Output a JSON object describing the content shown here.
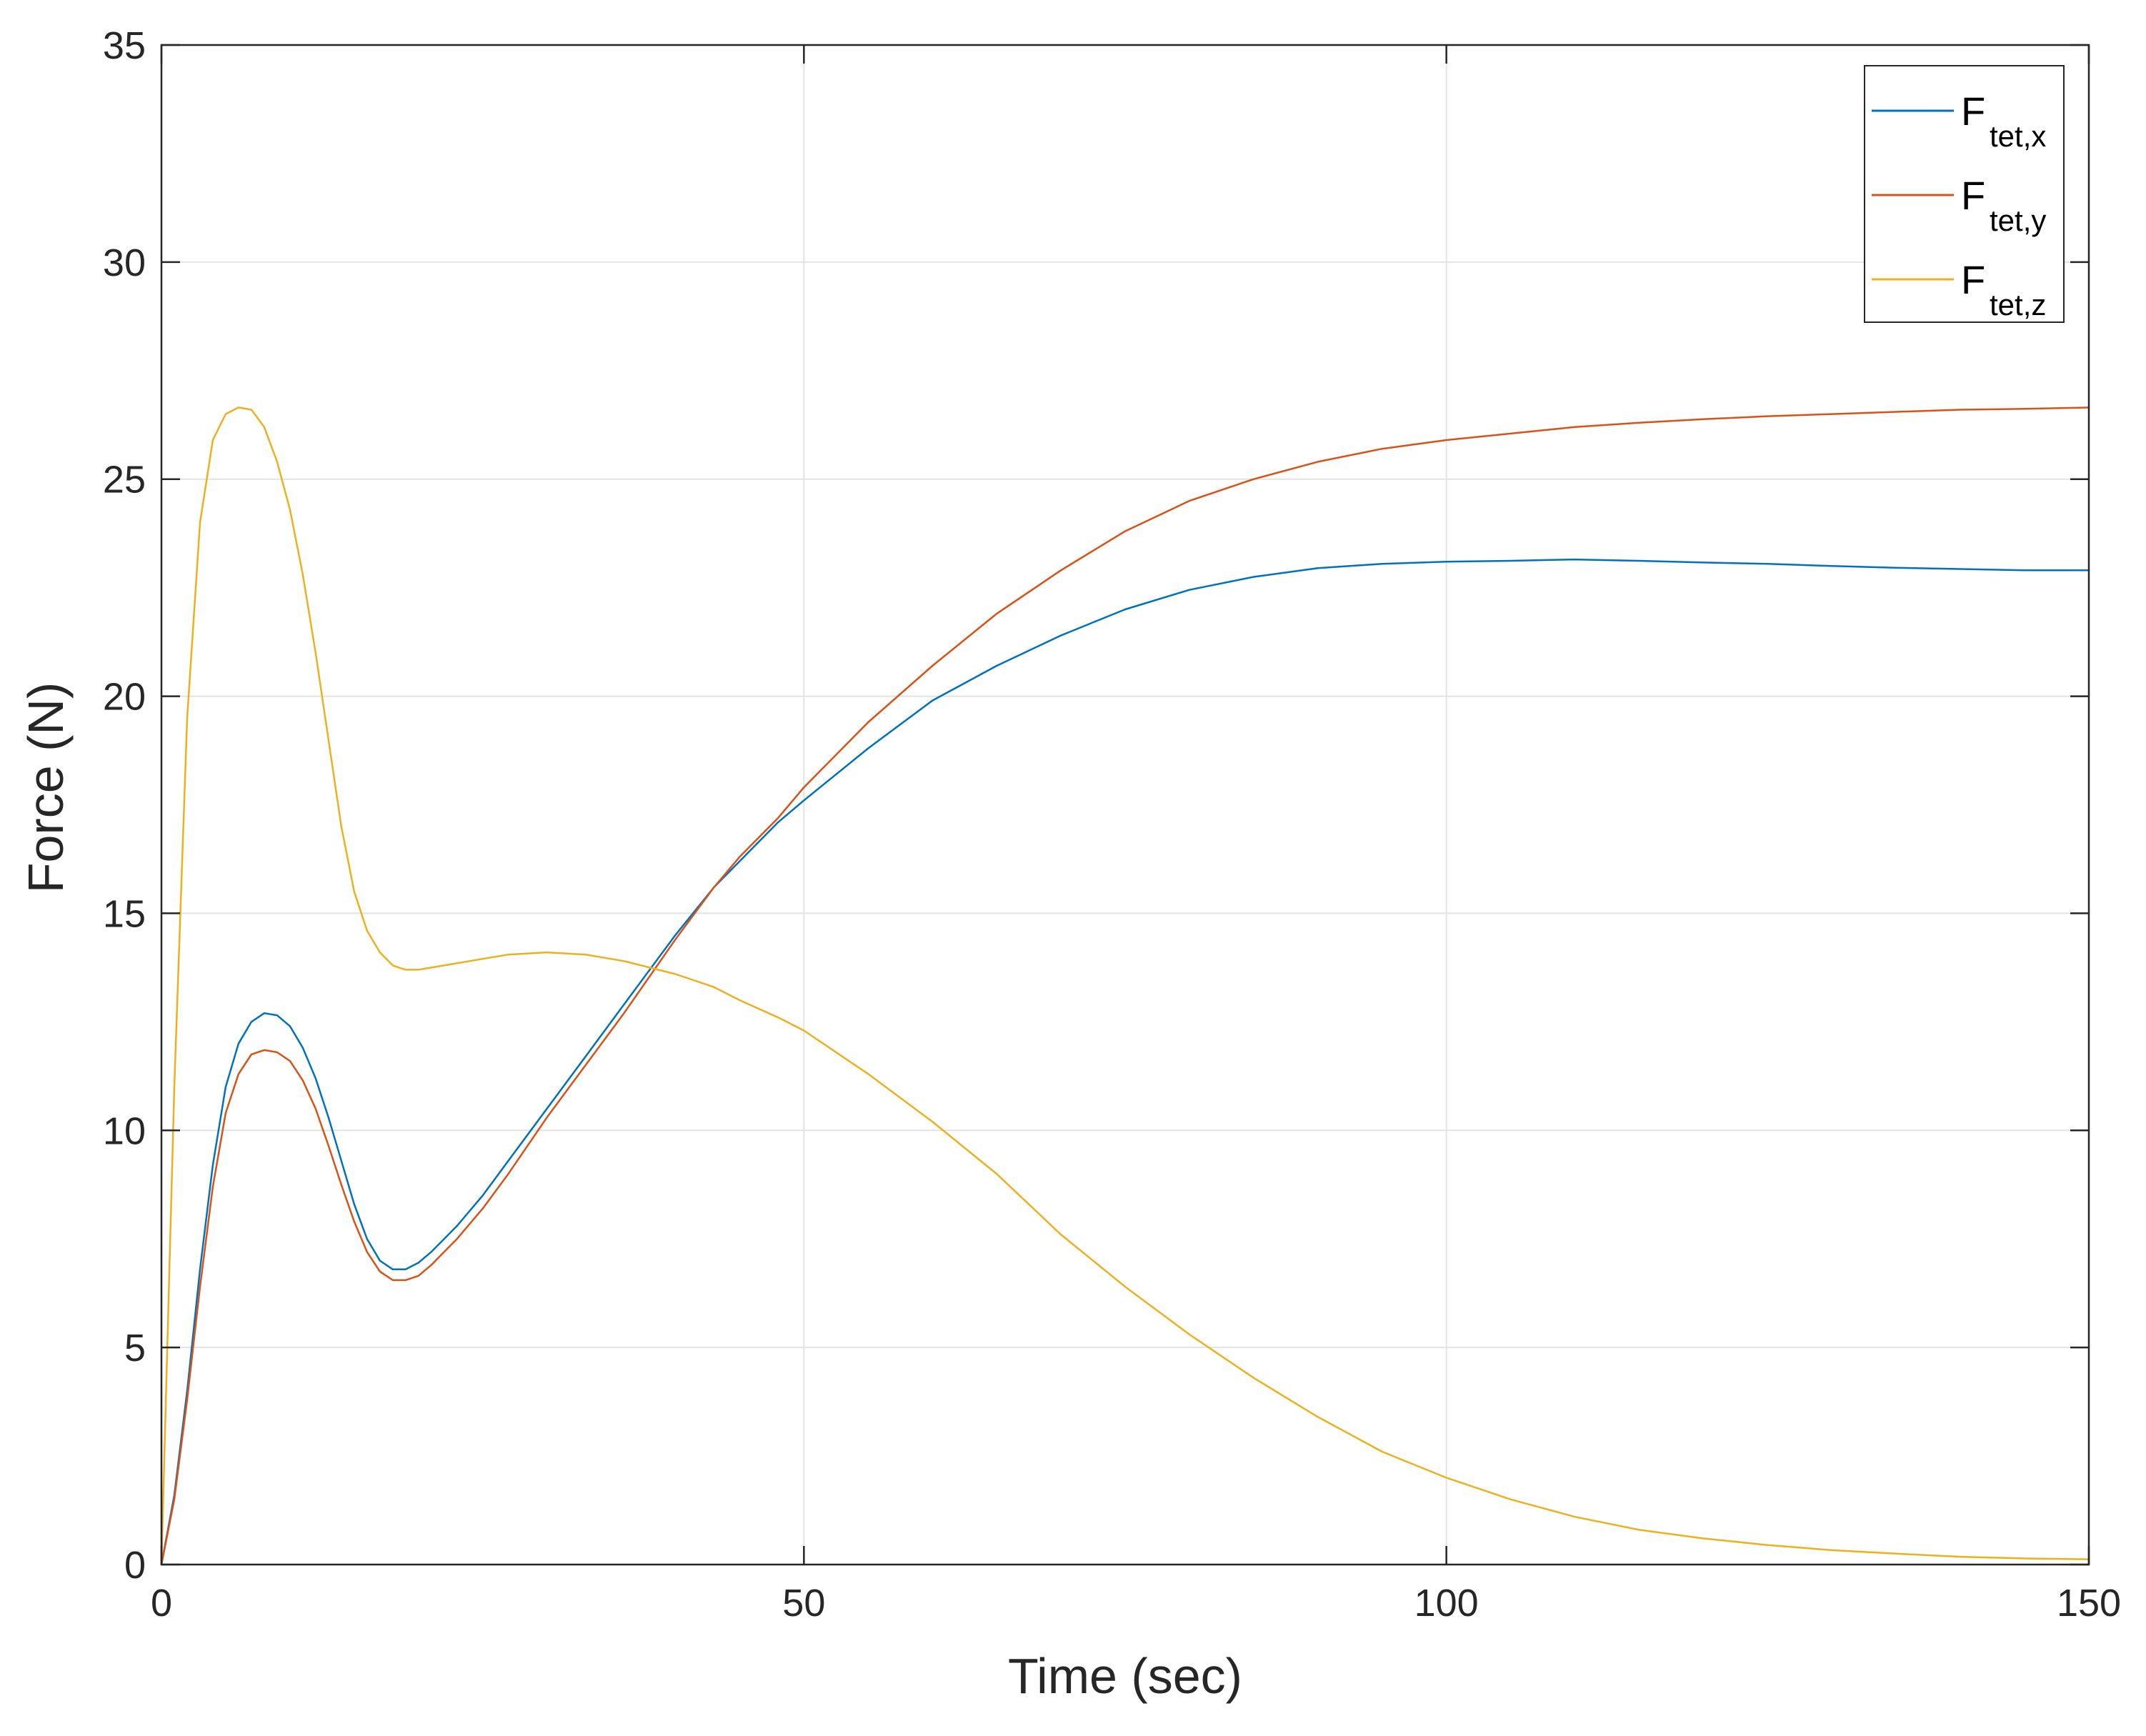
{
  "chart_data": {
    "type": "line",
    "title": "",
    "xlabel": "Time (sec)",
    "ylabel": "Force (N)",
    "xlim": [
      0,
      150
    ],
    "ylim": [
      0,
      35
    ],
    "xticks": [
      0,
      50,
      100,
      150
    ],
    "yticks": [
      0,
      5,
      10,
      15,
      20,
      25,
      30,
      35
    ],
    "xtick_labels": [
      "0",
      "50",
      "100",
      "150"
    ],
    "ytick_labels": [
      "0",
      "5",
      "10",
      "15",
      "20",
      "25",
      "30",
      "35"
    ],
    "grid": true,
    "legend_position": "top-right",
    "series": [
      {
        "name": "F",
        "subscript": "tet,x",
        "color": "#0072BD",
        "x": [
          0,
          1,
          2,
          3,
          4,
          5,
          6,
          7,
          8,
          9,
          10,
          11,
          12,
          13,
          14,
          15,
          16,
          17,
          18,
          19,
          20,
          21,
          22,
          23,
          25,
          27,
          30,
          33,
          36,
          40,
          43,
          45,
          48,
          50,
          55,
          60,
          65,
          70,
          75,
          80,
          85,
          90,
          95,
          100,
          105,
          110,
          115,
          120,
          125,
          130,
          135,
          140,
          145,
          150
        ],
        "y": [
          0,
          1.6,
          4.0,
          6.8,
          9.2,
          11.0,
          12.0,
          12.5,
          12.7,
          12.65,
          12.4,
          11.9,
          11.2,
          10.3,
          9.3,
          8.3,
          7.5,
          7.0,
          6.8,
          6.8,
          6.95,
          7.2,
          7.5,
          7.8,
          8.5,
          9.3,
          10.5,
          11.7,
          12.9,
          14.5,
          15.6,
          16.2,
          17.1,
          17.6,
          18.8,
          19.9,
          20.7,
          21.4,
          22.0,
          22.45,
          22.75,
          22.95,
          23.05,
          23.1,
          23.12,
          23.15,
          23.12,
          23.08,
          23.05,
          23.0,
          22.96,
          22.93,
          22.9,
          22.9
        ]
      },
      {
        "name": "F",
        "subscript": "tet,y",
        "color": "#D95319",
        "x": [
          0,
          1,
          2,
          3,
          4,
          5,
          6,
          7,
          8,
          9,
          10,
          11,
          12,
          13,
          14,
          15,
          16,
          17,
          18,
          19,
          20,
          21,
          22,
          23,
          25,
          27,
          30,
          33,
          36,
          40,
          43,
          45,
          48,
          50,
          55,
          60,
          65,
          70,
          75,
          80,
          85,
          90,
          95,
          100,
          105,
          110,
          115,
          120,
          125,
          130,
          135,
          140,
          145,
          150
        ],
        "y": [
          0,
          1.5,
          3.8,
          6.4,
          8.7,
          10.4,
          11.3,
          11.75,
          11.85,
          11.8,
          11.6,
          11.15,
          10.5,
          9.65,
          8.75,
          7.9,
          7.2,
          6.75,
          6.55,
          6.55,
          6.65,
          6.9,
          7.2,
          7.5,
          8.2,
          9.0,
          10.3,
          11.5,
          12.7,
          14.4,
          15.6,
          16.3,
          17.2,
          17.9,
          19.4,
          20.7,
          21.9,
          22.9,
          23.8,
          24.5,
          25.0,
          25.4,
          25.7,
          25.9,
          26.05,
          26.2,
          26.3,
          26.38,
          26.45,
          26.5,
          26.55,
          26.6,
          26.62,
          26.65
        ]
      },
      {
        "name": "F",
        "subscript": "tet,z",
        "color": "#EDB120",
        "x": [
          0,
          1,
          2,
          3,
          4,
          5,
          6,
          7,
          8,
          9,
          10,
          11,
          12,
          13,
          14,
          15,
          16,
          17,
          18,
          19,
          20,
          21,
          22,
          23,
          25,
          27,
          30,
          33,
          36,
          40,
          43,
          45,
          48,
          50,
          55,
          60,
          65,
          70,
          75,
          80,
          85,
          90,
          95,
          100,
          105,
          110,
          115,
          120,
          125,
          130,
          135,
          140,
          145,
          150
        ],
        "y": [
          0,
          11.0,
          19.5,
          24.0,
          25.9,
          26.5,
          26.65,
          26.6,
          26.2,
          25.4,
          24.3,
          22.8,
          21.0,
          19.0,
          17.0,
          15.5,
          14.6,
          14.1,
          13.8,
          13.7,
          13.7,
          13.75,
          13.8,
          13.85,
          13.95,
          14.05,
          14.1,
          14.05,
          13.9,
          13.6,
          13.3,
          13.0,
          12.6,
          12.3,
          11.3,
          10.2,
          9.0,
          7.6,
          6.4,
          5.3,
          4.3,
          3.4,
          2.6,
          2.0,
          1.5,
          1.1,
          0.8,
          0.6,
          0.45,
          0.33,
          0.25,
          0.18,
          0.14,
          0.12
        ]
      }
    ]
  }
}
